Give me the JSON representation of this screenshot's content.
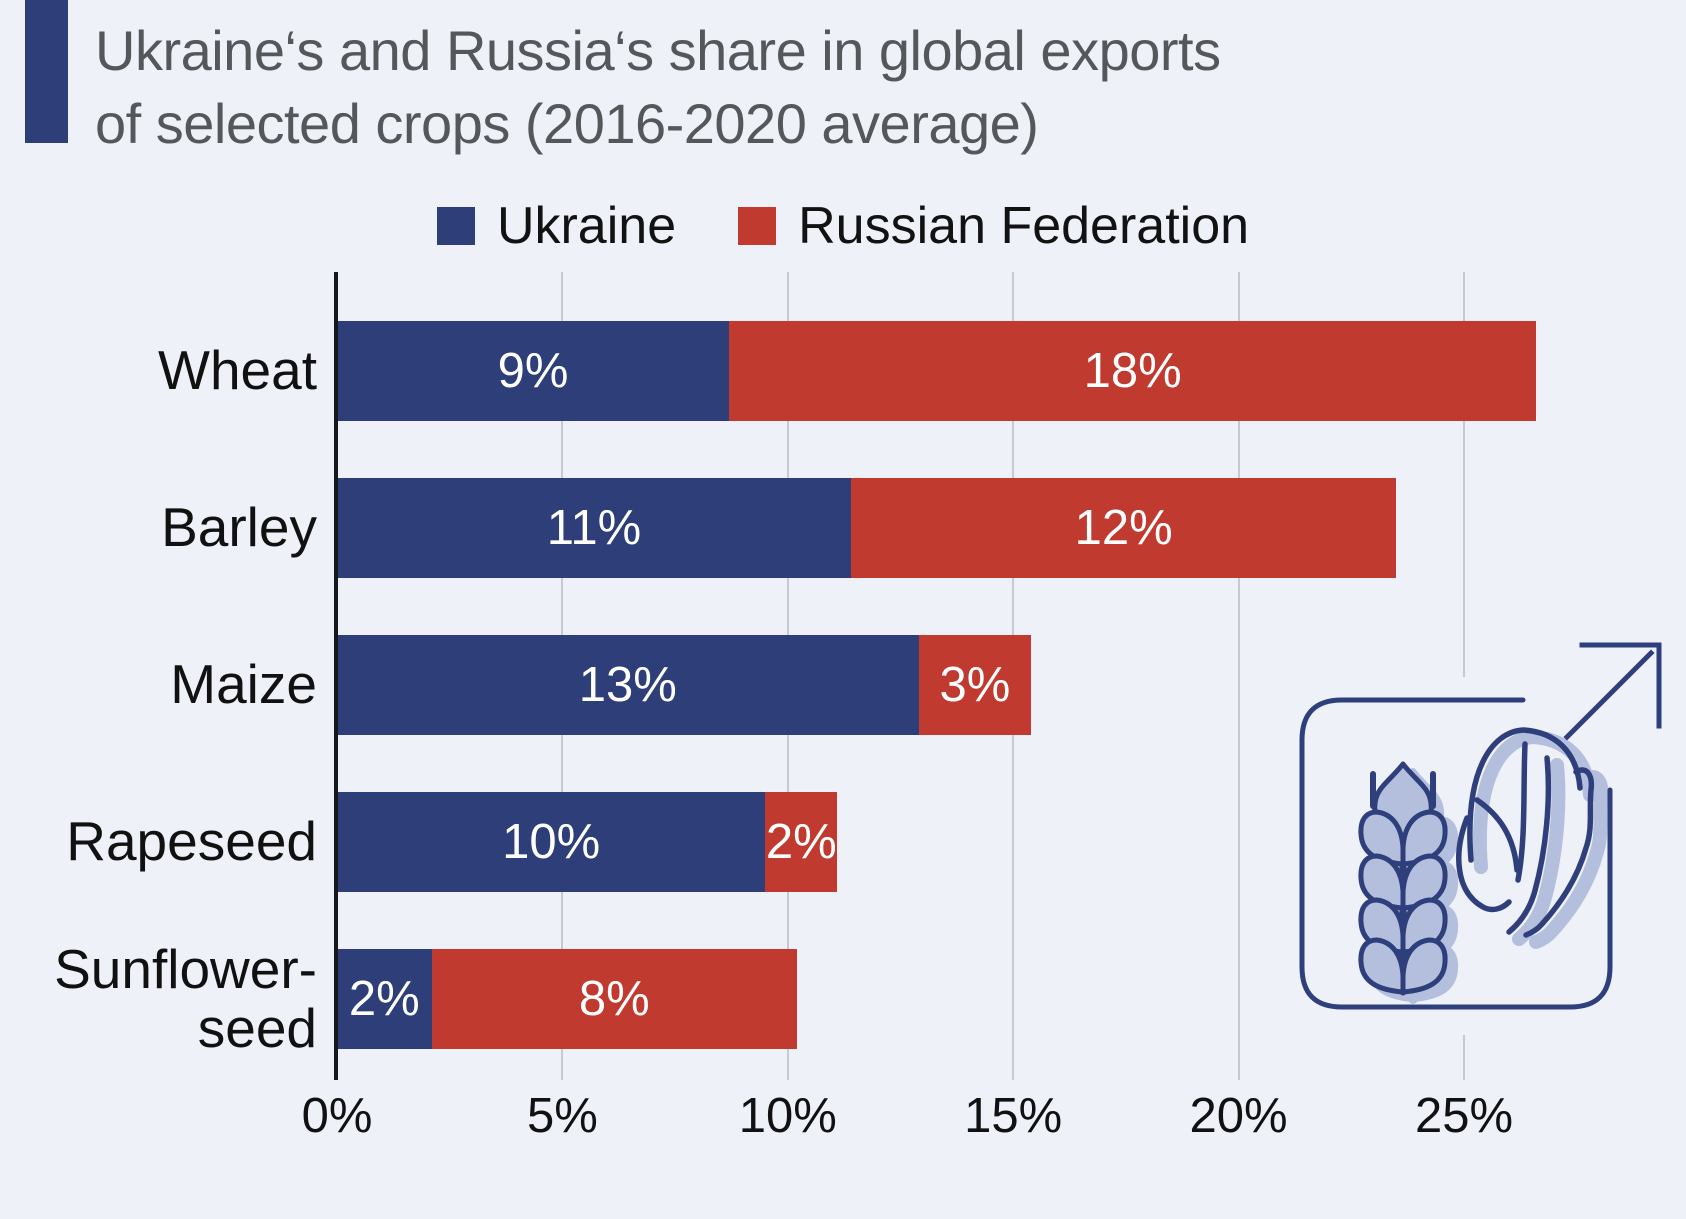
{
  "title": {
    "line1": "Ukraine‘s and Russia‘s share in global exports",
    "line2": "of selected crops (2016-2020 average)"
  },
  "legend": {
    "items": [
      {
        "label": "Ukraine",
        "color": "#2d3e78"
      },
      {
        "label": "Russian Federation",
        "color": "#c13a30"
      }
    ]
  },
  "chart_data": {
    "type": "bar",
    "orientation": "horizontal",
    "stacked": true,
    "title": "Ukraine‘s and Russia‘s share in global exports of selected crops (2016-2020 average)",
    "categories": [
      "Wheat",
      "Barley",
      "Maize",
      "Rapeseed",
      "Sunflower-seed"
    ],
    "category_display": [
      "Wheat",
      "Barley",
      "Maize",
      "Rapeseed",
      "Sunflower-\nseed"
    ],
    "series": [
      {
        "name": "Ukraine",
        "color": "#2d3e78",
        "values": [
          9,
          11,
          13,
          10,
          2
        ],
        "labels": [
          "9%",
          "11%",
          "13%",
          "10%",
          "2%"
        ],
        "plot_pct": [
          8.7,
          11.4,
          12.9,
          9.5,
          2.1
        ]
      },
      {
        "name": "Russian Federation",
        "color": "#c13a30",
        "values": [
          18,
          12,
          3,
          2,
          8
        ],
        "labels": [
          "18%",
          "12%",
          "3%",
          "2%",
          "8%"
        ],
        "plot_pct": [
          17.9,
          12.1,
          2.5,
          1.6,
          8.1
        ]
      }
    ],
    "x_axis": {
      "unit": "%",
      "min": 0,
      "max": 29.9,
      "ticks": [
        0,
        5,
        10,
        15,
        20,
        25
      ],
      "tick_labels": [
        "0%",
        "5%",
        "10%",
        "15%",
        "20%",
        "25%"
      ],
      "grid": true
    },
    "legend_position": "top",
    "value_labels": "inside-white"
  },
  "icon": {
    "name": "crops-growth-icon",
    "parts": [
      "wheat-ear",
      "maize-cob",
      "up-right-arrow",
      "rounded-frame"
    ],
    "stroke_color": "#2e3f7c",
    "fill_color": "#b4bfde"
  },
  "colors": {
    "background": "#eef1f7",
    "accent_bar": "#2d3e78",
    "title_text": "#54585b",
    "axis_text": "#111111",
    "gridline": "#c5c9d1",
    "axis_line": "#17181c",
    "bar_label_text": "#ffffff"
  }
}
